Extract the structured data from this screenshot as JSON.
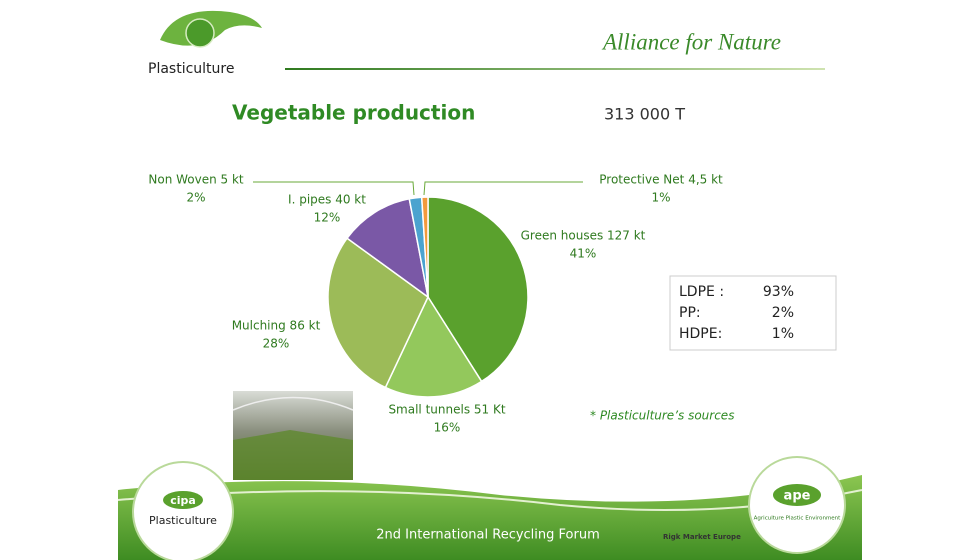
{
  "header": {
    "logo": "Plasticulture",
    "tagline": "Alliance for Nature"
  },
  "chart_data": {
    "type": "pie",
    "title": "Vegetable production",
    "subtitle": "313 000 T",
    "categories": [
      "Green houses 127 kt",
      "Small tunnels 51 Kt",
      "Mulching 86 kt",
      "I. pipes  40  kt",
      "Non Woven 5  kt",
      "Protective Net 4,5 kt"
    ],
    "values": [
      41,
      16,
      28,
      12,
      2,
      1
    ],
    "value_labels": [
      "41%",
      "16%",
      "28%",
      "12%",
      "2%",
      "1%"
    ],
    "colors": [
      "#5aa12d",
      "#93c85c",
      "#9cbb58",
      "#7a58a6",
      "#4ba3cf",
      "#f29a3d"
    ]
  },
  "composition": [
    [
      "LDPE :",
      "93%"
    ],
    [
      "PP:",
      "2%"
    ],
    [
      "HDPE:",
      "1%"
    ]
  ],
  "source_note": "* Plasticulture’s sources",
  "footer": {
    "left_logo_badge": "cipa",
    "left_logo": "Plasticulture",
    "event": "2nd International Recycling Forum",
    "sponsor": "Rigk Market Europe",
    "right_logo_badge": "ape",
    "right_logo": "Agriculture Plastic Environment"
  }
}
